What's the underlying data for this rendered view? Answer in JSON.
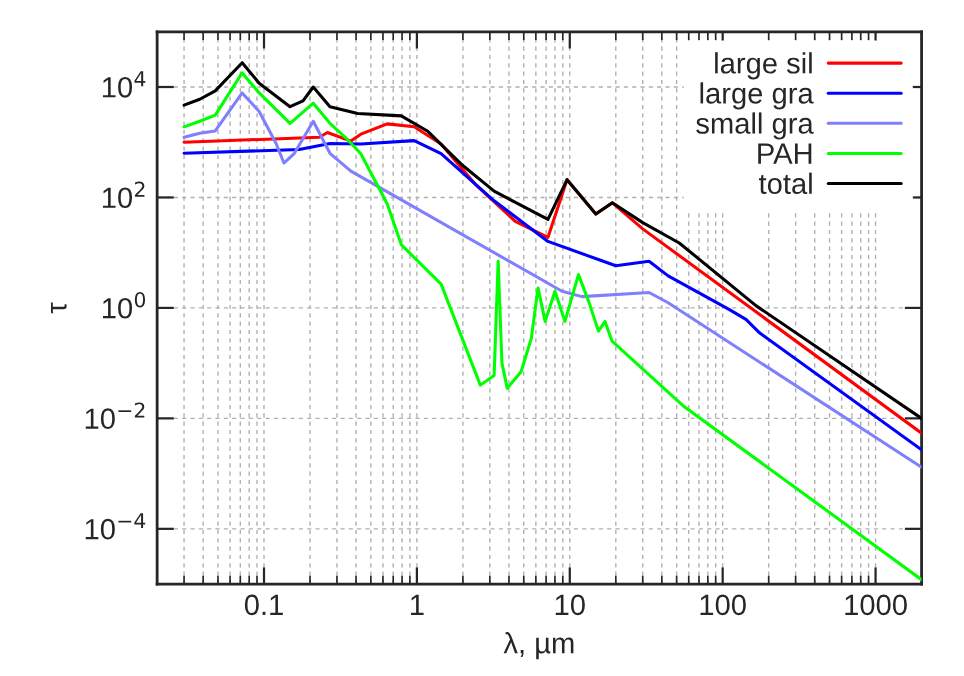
{
  "chart_data": {
    "type": "line",
    "xlabel": "λ, µm",
    "ylabel": "τ",
    "log": "xy",
    "grid": true,
    "legend": "top right",
    "xlim": [
      0.02,
      2000
    ],
    "ylim": [
      1e-05,
      100000
    ],
    "xticks": [
      {
        "value": 0.1,
        "label": "0.1"
      },
      1,
      10,
      100,
      1000
    ],
    "yticks": [
      {
        "value": 0.0001,
        "label": "10$^{−4}$"
      },
      {
        "value": 0.01,
        "label": "10$^{−2}$"
      },
      {
        "value": 1,
        "label": "10$^{0}$"
      },
      {
        "value": 100,
        "label": "10$^{2}$"
      },
      {
        "value": 10000,
        "label": "10$^{4}$"
      }
    ],
    "series": [
      {
        "name": "large sil",
        "color": "#ff0000",
        "x": [
          0.03,
          0.23,
          0.26,
          0.37,
          0.43,
          0.64,
          0.96,
          1.44,
          2.4,
          4.4,
          7.2,
          9.6,
          14.8,
          19,
          30,
          2000
        ],
        "values": [
          1000,
          1230,
          1500,
          1050,
          1400,
          2150,
          1900,
          930,
          175,
          37,
          19,
          210,
          50,
          80,
          27,
          0.0054
        ]
      },
      {
        "name": "large gra",
        "color": "#0000ff",
        "x": [
          0.03,
          0.17,
          0.27,
          0.43,
          0.96,
          1.44,
          3.2,
          7.2,
          20,
          33,
          44,
          110,
          142,
          175,
          2000
        ],
        "values": [
          630,
          740,
          950,
          930,
          1070,
          620,
          87,
          16,
          5.8,
          7,
          3.8,
          0.94,
          0.62,
          0.35,
          0.0027
        ]
      },
      {
        "name": "small gra",
        "color": "#8080ff",
        "x": [
          0.03,
          0.038,
          0.048,
          0.072,
          0.093,
          0.12,
          0.135,
          0.158,
          0.21,
          0.27,
          0.37,
          8.9,
          12,
          33,
          44,
          2000
        ],
        "values": [
          1230,
          1450,
          1600,
          7800,
          3600,
          950,
          420,
          630,
          2400,
          630,
          300,
          2.0,
          1.6,
          1.9,
          1.24,
          0.0013
        ]
      },
      {
        "name": "PAH",
        "color": "#00ff00",
        "x": [
          0.03,
          0.038,
          0.048,
          0.072,
          0.093,
          0.148,
          0.21,
          0.27,
          0.34,
          0.43,
          0.64,
          0.79,
          1.44,
          2.6,
          3.2,
          3.4,
          3.6,
          3.9,
          4.8,
          5.6,
          6.2,
          6.9,
          8.0,
          9.3,
          11.4,
          13.3,
          15.4,
          17,
          18.9,
          55,
          2000
        ],
        "values": [
          1900,
          2400,
          3100,
          18000,
          7800,
          2200,
          5100,
          2200,
          1230,
          620,
          76,
          14,
          2.7,
          0.04,
          0.06,
          7,
          0.1,
          0.035,
          0.07,
          0.28,
          2.3,
          0.57,
          2.0,
          0.57,
          4,
          1.3,
          0.38,
          0.57,
          0.25,
          0.017,
          1.2e-05
        ]
      },
      {
        "name": "total",
        "color": "#000000",
        "x": [
          0.03,
          0.038,
          0.048,
          0.072,
          0.093,
          0.148,
          0.18,
          0.21,
          0.27,
          0.41,
          0.79,
          1.17,
          1.95,
          3.2,
          7.2,
          9.6,
          14.8,
          19,
          30,
          52,
          165,
          2000
        ],
        "values": [
          4700,
          6000,
          8500,
          27500,
          11700,
          4400,
          5600,
          10000,
          4400,
          3300,
          3000,
          1600,
          400,
          130,
          40,
          210,
          50,
          80,
          35,
          15,
          1.1,
          0.01
        ]
      }
    ]
  }
}
